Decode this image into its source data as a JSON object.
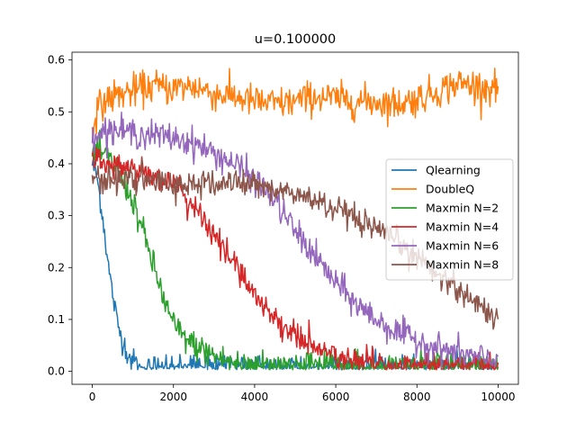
{
  "chart_data": {
    "type": "line",
    "title": "u=0.100000",
    "xlabel": "",
    "ylabel": "",
    "xlim": [
      -500,
      10500
    ],
    "ylim": [
      -0.025,
      0.615
    ],
    "xticks": [
      0,
      2000,
      4000,
      6000,
      8000,
      10000
    ],
    "xtick_labels": [
      "0",
      "2000",
      "4000",
      "6000",
      "8000",
      "10000"
    ],
    "yticks": [
      0.0,
      0.1,
      0.2,
      0.3,
      0.4,
      0.5,
      0.6
    ],
    "ytick_labels": [
      "0.0",
      "0.1",
      "0.2",
      "0.3",
      "0.4",
      "0.5",
      "0.6"
    ],
    "grid": false,
    "legend_position": "center-right",
    "series": [
      {
        "name": "Qlearning",
        "color": "#1f77b4",
        "noise": 0.012,
        "x": [
          0,
          100,
          200,
          300,
          400,
          500,
          600,
          700,
          800,
          900,
          1000,
          1200,
          1500,
          2000,
          3000,
          4000,
          5000,
          6000,
          7000,
          8000,
          9000,
          10000
        ],
        "y": [
          0.4,
          0.38,
          0.33,
          0.27,
          0.2,
          0.15,
          0.1,
          0.07,
          0.05,
          0.03,
          0.02,
          0.01,
          0.01,
          0.01,
          0.01,
          0.01,
          0.01,
          0.01,
          0.01,
          0.01,
          0.01,
          0.01
        ]
      },
      {
        "name": "DoubleQ",
        "color": "#ff7f0e",
        "noise": 0.016,
        "x": [
          0,
          100,
          300,
          500,
          1000,
          1500,
          2000,
          2500,
          3000,
          3500,
          4000,
          4500,
          5000,
          5500,
          6000,
          6500,
          7000,
          7500,
          8000,
          8500,
          9000,
          9500,
          10000
        ],
        "y": [
          0.47,
          0.5,
          0.52,
          0.53,
          0.54,
          0.55,
          0.545,
          0.55,
          0.535,
          0.53,
          0.52,
          0.515,
          0.52,
          0.53,
          0.525,
          0.52,
          0.52,
          0.515,
          0.525,
          0.54,
          0.555,
          0.55,
          0.545
        ]
      },
      {
        "name": "Maxmin N=2",
        "color": "#2ca02c",
        "noise": 0.014,
        "x": [
          0,
          200,
          400,
          600,
          800,
          1000,
          1200,
          1400,
          1600,
          1800,
          2000,
          2200,
          2500,
          3000,
          3500,
          4000,
          5000,
          6000,
          7000,
          8000,
          9000,
          10000
        ],
        "y": [
          0.42,
          0.42,
          0.41,
          0.39,
          0.36,
          0.33,
          0.28,
          0.23,
          0.18,
          0.13,
          0.09,
          0.07,
          0.05,
          0.03,
          0.015,
          0.012,
          0.01,
          0.01,
          0.01,
          0.01,
          0.01,
          0.01
        ]
      },
      {
        "name": "Maxmin N=4",
        "color": "#d62728",
        "noise": 0.013,
        "x": [
          0,
          500,
          1000,
          1500,
          2000,
          2500,
          3000,
          3500,
          4000,
          4500,
          5000,
          5500,
          6000,
          6500,
          7000,
          8000,
          9000,
          10000
        ],
        "y": [
          0.41,
          0.4,
          0.39,
          0.38,
          0.36,
          0.32,
          0.26,
          0.21,
          0.15,
          0.1,
          0.07,
          0.045,
          0.03,
          0.02,
          0.015,
          0.01,
          0.01,
          0.01
        ]
      },
      {
        "name": "Maxmin N=6",
        "color": "#9467bd",
        "noise": 0.014,
        "x": [
          0,
          500,
          1000,
          1500,
          2000,
          2500,
          3000,
          3500,
          4000,
          4500,
          5000,
          5500,
          6000,
          6500,
          7000,
          7500,
          8000,
          8500,
          9000,
          9500,
          10000
        ],
        "y": [
          0.46,
          0.465,
          0.46,
          0.455,
          0.45,
          0.44,
          0.42,
          0.4,
          0.37,
          0.33,
          0.27,
          0.22,
          0.17,
          0.13,
          0.1,
          0.075,
          0.06,
          0.045,
          0.035,
          0.025,
          0.02
        ]
      },
      {
        "name": "Maxmin N=8",
        "color": "#8c564b",
        "noise": 0.013,
        "x": [
          0,
          500,
          1000,
          1500,
          2000,
          2500,
          3000,
          3500,
          4000,
          4500,
          5000,
          5500,
          6000,
          6500,
          7000,
          7500,
          8000,
          8500,
          9000,
          9500,
          10000
        ],
        "y": [
          0.37,
          0.37,
          0.37,
          0.365,
          0.36,
          0.36,
          0.36,
          0.365,
          0.36,
          0.35,
          0.34,
          0.33,
          0.31,
          0.29,
          0.27,
          0.25,
          0.22,
          0.19,
          0.16,
          0.13,
          0.1
        ]
      }
    ]
  }
}
